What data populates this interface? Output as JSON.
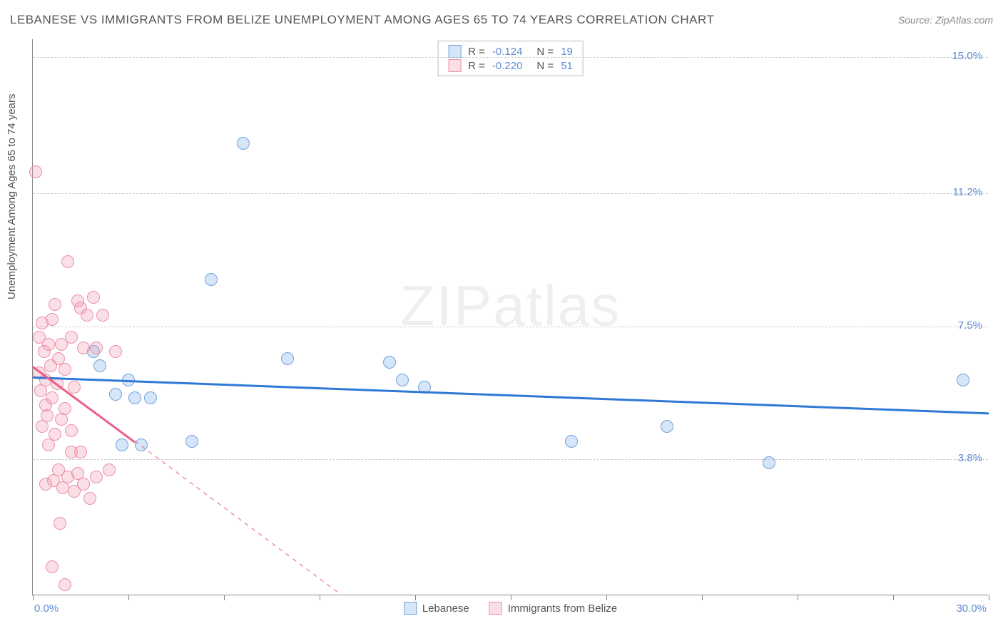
{
  "title": "LEBANESE VS IMMIGRANTS FROM BELIZE UNEMPLOYMENT AMONG AGES 65 TO 74 YEARS CORRELATION CHART",
  "source": "Source: ZipAtlas.com",
  "ylabel": "Unemployment Among Ages 65 to 74 years",
  "watermark_a": "ZIP",
  "watermark_b": "atlas",
  "chart": {
    "type": "scatter",
    "x_min": 0.0,
    "x_max": 30.0,
    "y_min": 0.0,
    "y_max": 15.5,
    "background_color": "#ffffff",
    "grid_color": "#cccccc",
    "axis_color": "#888888",
    "ytick_values": [
      3.8,
      7.5,
      11.2,
      15.0
    ],
    "ytick_labels": [
      "3.8%",
      "7.5%",
      "11.2%",
      "15.0%"
    ],
    "xtick_values": [
      0,
      3,
      6,
      9,
      12,
      15,
      18,
      21,
      24,
      27,
      30
    ],
    "x_label_min": "0.0%",
    "x_label_max": "30.0%",
    "marker_radius": 9,
    "marker_stroke_width": 1.5,
    "series": [
      {
        "id": "lebanese",
        "name": "Lebanese",
        "R": "-0.124",
        "N": "19",
        "fill": "rgba(120,170,230,0.30)",
        "stroke": "#6fa3dc",
        "trend_color": "#2f78d6",
        "trend_width": 3,
        "trend": {
          "x1": 0.0,
          "y1": 6.1,
          "x2": 30.0,
          "y2": 5.1
        },
        "points": [
          [
            2.1,
            6.4
          ],
          [
            2.6,
            5.6
          ],
          [
            3.2,
            5.5
          ],
          [
            3.4,
            4.2
          ],
          [
            5.0,
            4.3
          ],
          [
            6.6,
            12.6
          ],
          [
            5.6,
            8.8
          ],
          [
            8.0,
            6.6
          ],
          [
            11.2,
            6.5
          ],
          [
            11.6,
            6.0
          ],
          [
            12.3,
            5.8
          ],
          [
            16.9,
            4.3
          ],
          [
            19.9,
            4.7
          ],
          [
            23.1,
            3.7
          ],
          [
            29.2,
            6.0
          ],
          [
            2.8,
            4.2
          ],
          [
            1.9,
            6.8
          ],
          [
            3.0,
            6.0
          ],
          [
            3.7,
            5.5
          ]
        ]
      },
      {
        "id": "belize",
        "name": "Immigrants from Belize",
        "R": "-0.220",
        "N": "51",
        "fill": "rgba(240,150,175,0.30)",
        "stroke": "#ec8fa8",
        "trend_color": "#ec5f86",
        "trend_width": 3,
        "trend": {
          "x1": 0.0,
          "y1": 6.4,
          "x2": 3.2,
          "y2": 4.3
        },
        "trend_dash": {
          "x1": 3.2,
          "y1": 4.3,
          "x2": 9.7,
          "y2": 0.0
        },
        "points": [
          [
            0.1,
            11.8
          ],
          [
            0.2,
            6.2
          ],
          [
            0.2,
            7.2
          ],
          [
            0.25,
            5.7
          ],
          [
            0.3,
            7.6
          ],
          [
            0.3,
            4.7
          ],
          [
            0.35,
            6.8
          ],
          [
            0.4,
            5.3
          ],
          [
            0.4,
            6.0
          ],
          [
            0.45,
            5.0
          ],
          [
            0.5,
            7.0
          ],
          [
            0.5,
            4.2
          ],
          [
            0.55,
            6.4
          ],
          [
            0.6,
            5.5
          ],
          [
            0.6,
            7.7
          ],
          [
            0.65,
            3.2
          ],
          [
            0.7,
            8.1
          ],
          [
            0.7,
            4.5
          ],
          [
            0.75,
            5.9
          ],
          [
            0.8,
            3.5
          ],
          [
            0.8,
            6.6
          ],
          [
            0.85,
            2.0
          ],
          [
            0.9,
            4.9
          ],
          [
            0.9,
            7.0
          ],
          [
            0.95,
            3.0
          ],
          [
            1.0,
            5.2
          ],
          [
            1.0,
            6.3
          ],
          [
            1.1,
            9.3
          ],
          [
            1.1,
            3.3
          ],
          [
            1.2,
            4.6
          ],
          [
            1.2,
            7.2
          ],
          [
            1.3,
            2.9
          ],
          [
            1.3,
            5.8
          ],
          [
            1.4,
            3.4
          ],
          [
            1.4,
            8.2
          ],
          [
            1.5,
            8.0
          ],
          [
            1.5,
            4.0
          ],
          [
            1.6,
            6.9
          ],
          [
            1.6,
            3.1
          ],
          [
            1.7,
            7.8
          ],
          [
            1.8,
            2.7
          ],
          [
            1.9,
            8.3
          ],
          [
            2.0,
            6.9
          ],
          [
            2.0,
            3.3
          ],
          [
            2.2,
            7.8
          ],
          [
            2.4,
            3.5
          ],
          [
            2.6,
            6.8
          ],
          [
            0.6,
            0.8
          ],
          [
            1.0,
            0.3
          ],
          [
            1.2,
            4.0
          ],
          [
            0.4,
            3.1
          ]
        ]
      }
    ]
  },
  "legend_top": {
    "r_label": "R =",
    "n_label": "N ="
  }
}
